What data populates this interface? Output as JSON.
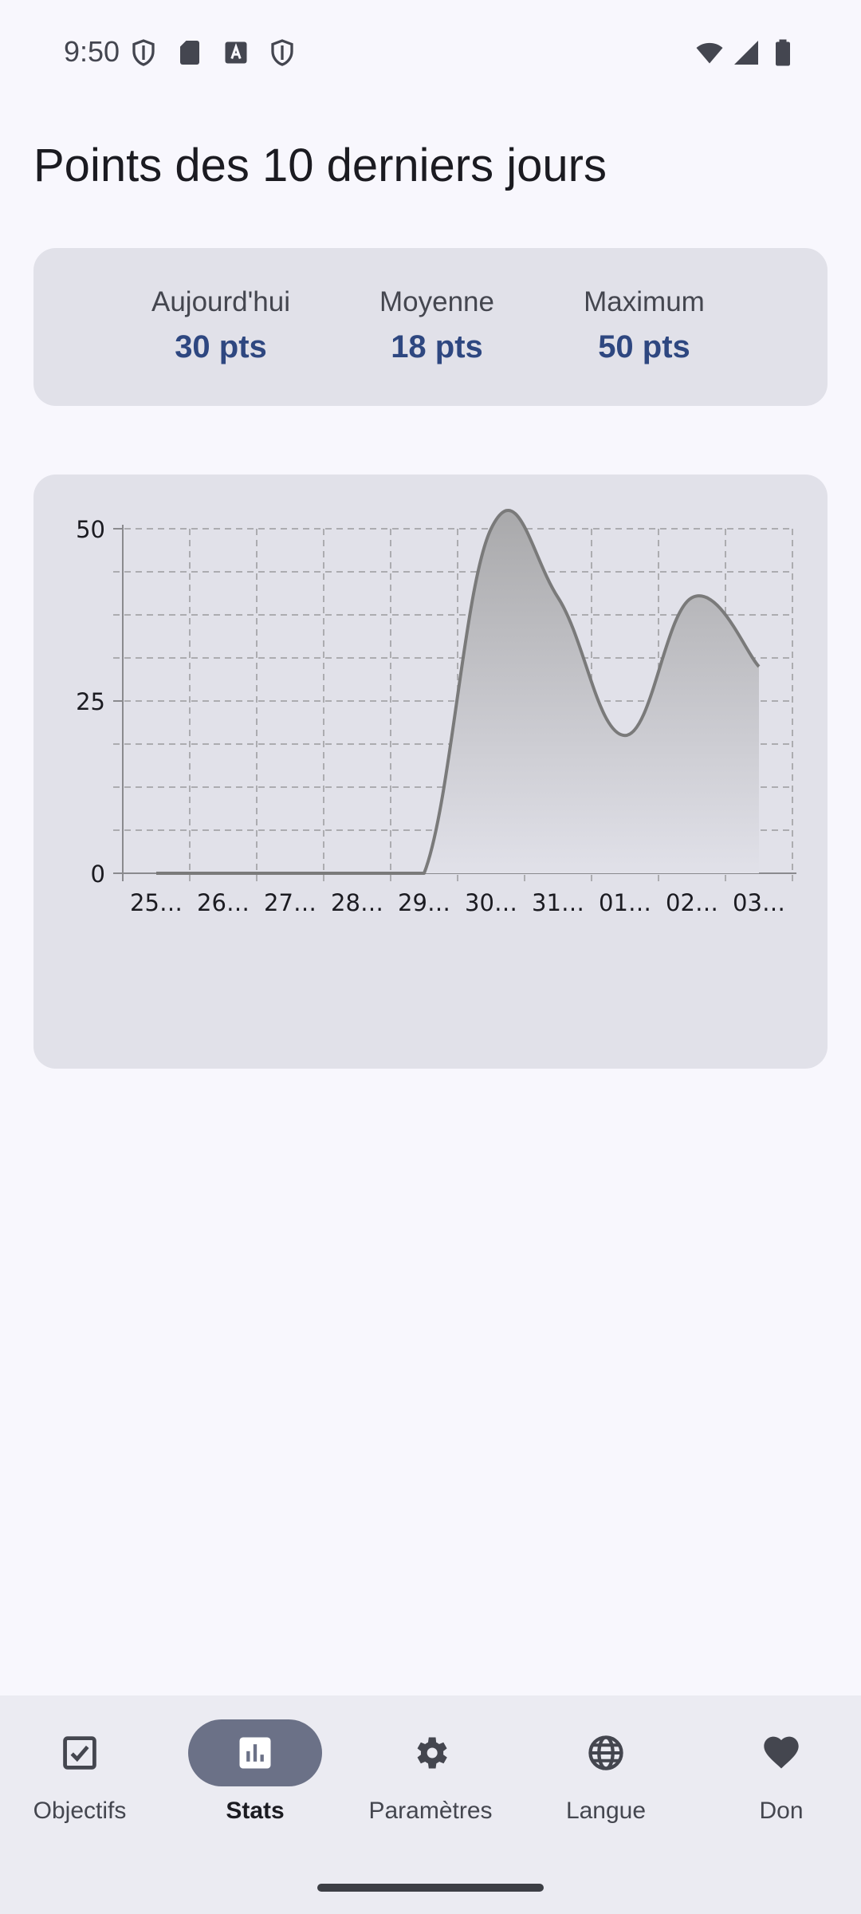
{
  "status_bar": {
    "time": "9:50",
    "left_icons": [
      "shield-icon",
      "sd-card-icon",
      "font-a-icon",
      "shield-icon"
    ],
    "right_icons": [
      "wifi-icon",
      "signal-icon",
      "battery-icon"
    ]
  },
  "page": {
    "title": "Points des 10 derniers jours"
  },
  "summary": {
    "today_label": "Aujourd'hui",
    "today_value": "30 pts",
    "average_label": "Moyenne",
    "average_value": "18 pts",
    "max_label": "Maximum",
    "max_value": "50 pts"
  },
  "chart_data": {
    "type": "area",
    "title": "",
    "xlabel": "",
    "ylabel": "",
    "categories": [
      "25…",
      "26…",
      "27…",
      "28…",
      "29…",
      "30…",
      "31…",
      "01…",
      "02…",
      "03…"
    ],
    "values": [
      0,
      0,
      0,
      0,
      0,
      50,
      40,
      20,
      40,
      30
    ],
    "ylim": [
      0,
      50
    ],
    "y_ticks": [
      "0",
      "25",
      "50"
    ],
    "grid": true,
    "colors": {
      "line": "#7a7a7a",
      "fill_top": "#a9a9ab",
      "fill_bottom": "#e1e1e9",
      "grid": "#9a9a9e"
    }
  },
  "nav": {
    "items": [
      {
        "label": "Objectifs",
        "icon": "checkbox-icon",
        "active": false
      },
      {
        "label": "Stats",
        "icon": "bar-chart-icon",
        "active": true
      },
      {
        "label": "Paramètres",
        "icon": "gear-icon",
        "active": false
      },
      {
        "label": "Langue",
        "icon": "globe-icon",
        "active": false
      },
      {
        "label": "Don",
        "icon": "heart-icon",
        "active": false
      }
    ]
  }
}
